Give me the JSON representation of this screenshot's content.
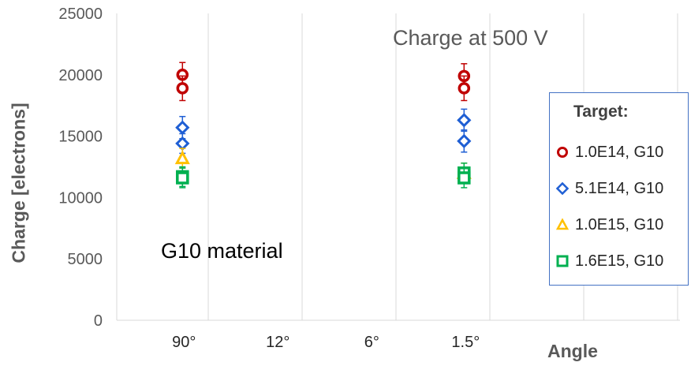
{
  "chart_data": {
    "type": "scatter",
    "title": "",
    "annotations": [
      "Charge at 500 V",
      "G10 material"
    ],
    "xlabel": "Angle",
    "ylabel": "Charge [electrons]",
    "categories": [
      "90°",
      "12°",
      "6°",
      "1.5°"
    ],
    "ylim": [
      0,
      25000
    ],
    "yticks": [
      0,
      5000,
      10000,
      15000,
      20000,
      25000
    ],
    "grid": "vertical",
    "legend_title": "Target:",
    "legend_position": "right",
    "series": [
      {
        "name": "1.0E14, G10",
        "marker": "circle",
        "color": "#C00000",
        "points": [
          {
            "x": "90°",
            "y": 20000,
            "err": 1000
          },
          {
            "x": "90°",
            "y": 18900,
            "err": 1000
          },
          {
            "x": "1.5°",
            "y": 19900,
            "err": 1000
          },
          {
            "x": "1.5°",
            "y": 18900,
            "err": 1000
          }
        ]
      },
      {
        "name": "5.1E14, G10",
        "marker": "diamond",
        "color": "#1F5FD4",
        "points": [
          {
            "x": "90°",
            "y": 15700,
            "err": 900
          },
          {
            "x": "90°",
            "y": 14400,
            "err": 800
          },
          {
            "x": "1.5°",
            "y": 16300,
            "err": 900
          },
          {
            "x": "1.5°",
            "y": 14600,
            "err": 900
          }
        ]
      },
      {
        "name": "1.0E15, G10",
        "marker": "triangle",
        "color": "#FFC000",
        "points": [
          {
            "x": "90°",
            "y": 13200,
            "err": 800
          },
          {
            "x": "1.5°",
            "y": 12000,
            "err": 800
          }
        ]
      },
      {
        "name": "1.6E15, G10",
        "marker": "square",
        "color": "#00B050",
        "points": [
          {
            "x": "90°",
            "y": 11700,
            "err": 800
          },
          {
            "x": "90°",
            "y": 11600,
            "err": 800
          },
          {
            "x": "1.5°",
            "y": 12000,
            "err": 800
          },
          {
            "x": "1.5°",
            "y": 11600,
            "err": 800
          }
        ]
      }
    ]
  }
}
